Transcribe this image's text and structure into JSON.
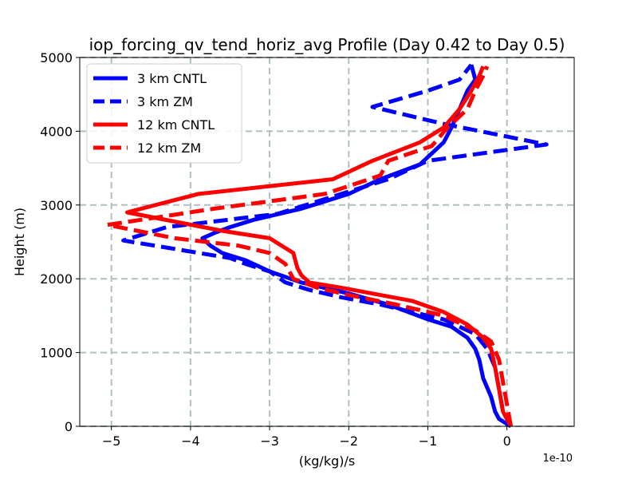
{
  "chart_data": {
    "type": "line",
    "title": "iop_forcing_qv_tend_horiz_avg Profile (Day 0.42 to Day 0.5)",
    "xlabel": "(kg/kg)/s",
    "ylabel": "Height (m)",
    "x_scale_label": "1e-10",
    "xlim": [
      -5.4,
      0.85
    ],
    "ylim": [
      0,
      5000
    ],
    "xticks": [
      -5,
      -4,
      -3,
      -2,
      -1,
      0
    ],
    "xtick_labels": [
      "−5",
      "−4",
      "−3",
      "−2",
      "−1",
      "0"
    ],
    "yticks": [
      0,
      1000,
      2000,
      3000,
      4000,
      5000
    ],
    "ytick_labels": [
      "0",
      "1000",
      "2000",
      "3000",
      "4000",
      "5000"
    ],
    "grid": true,
    "legend_position": "top-left",
    "series": [
      {
        "name": "3 km CNTL",
        "color": "#0000ff",
        "style": "solid",
        "points": [
          [
            0.05,
            0
          ],
          [
            -0.1,
            100
          ],
          [
            -0.15,
            200
          ],
          [
            -0.2,
            400
          ],
          [
            -0.3,
            650
          ],
          [
            -0.35,
            900
          ],
          [
            -0.4,
            1050
          ],
          [
            -0.5,
            1200
          ],
          [
            -0.7,
            1350
          ],
          [
            -1.0,
            1450
          ],
          [
            -1.5,
            1650
          ],
          [
            -2.0,
            1800
          ],
          [
            -2.6,
            1950
          ],
          [
            -3.0,
            2100
          ],
          [
            -3.3,
            2250
          ],
          [
            -3.6,
            2350
          ],
          [
            -3.75,
            2450
          ],
          [
            -3.85,
            2550
          ],
          [
            -3.7,
            2620
          ],
          [
            -3.5,
            2700
          ],
          [
            -3.2,
            2800
          ],
          [
            -2.6,
            2950
          ],
          [
            -2.3,
            3050
          ],
          [
            -2.0,
            3150
          ],
          [
            -1.6,
            3350
          ],
          [
            -1.1,
            3550
          ],
          [
            -0.8,
            3850
          ],
          [
            -0.7,
            4050
          ],
          [
            -0.6,
            4300
          ],
          [
            -0.5,
            4550
          ],
          [
            -0.4,
            4700
          ],
          [
            -0.45,
            4900
          ]
        ]
      },
      {
        "name": "3 km ZM",
        "color": "#0000ff",
        "style": "dashed",
        "points": [
          [
            0.05,
            0
          ],
          [
            -0.05,
            200
          ],
          [
            -0.1,
            500
          ],
          [
            -0.15,
            800
          ],
          [
            -0.25,
            1050
          ],
          [
            -0.4,
            1250
          ],
          [
            -0.8,
            1450
          ],
          [
            -1.2,
            1550
          ],
          [
            -1.6,
            1650
          ],
          [
            -2.1,
            1750
          ],
          [
            -2.5,
            1850
          ],
          [
            -2.8,
            1950
          ],
          [
            -3.0,
            2100
          ],
          [
            -3.3,
            2200
          ],
          [
            -3.5,
            2280
          ],
          [
            -4.85,
            2520
          ],
          [
            -4.3,
            2700
          ],
          [
            -2.9,
            2880
          ],
          [
            -1.5,
            3350
          ],
          [
            -1.0,
            3600
          ],
          [
            0.5,
            3820
          ],
          [
            -0.8,
            4100
          ],
          [
            -1.7,
            4330
          ],
          [
            -1.0,
            4550
          ],
          [
            -0.6,
            4700
          ],
          [
            -0.45,
            4900
          ]
        ]
      },
      {
        "name": "12 km CNTL",
        "color": "#ff0000",
        "style": "solid",
        "points": [
          [
            0.05,
            0
          ],
          [
            -0.05,
            200
          ],
          [
            -0.1,
            500
          ],
          [
            -0.15,
            800
          ],
          [
            -0.2,
            1050
          ],
          [
            -0.3,
            1200
          ],
          [
            -0.5,
            1380
          ],
          [
            -0.8,
            1550
          ],
          [
            -1.2,
            1700
          ],
          [
            -2.1,
            1880
          ],
          [
            -2.5,
            1950
          ],
          [
            -2.6,
            2050
          ],
          [
            -2.65,
            2150
          ],
          [
            -2.7,
            2350
          ],
          [
            -3.0,
            2550
          ],
          [
            -3.6,
            2650
          ],
          [
            -4.8,
            2900
          ],
          [
            -3.9,
            3150
          ],
          [
            -2.2,
            3350
          ],
          [
            -1.7,
            3600
          ],
          [
            -1.1,
            3850
          ],
          [
            -0.8,
            4050
          ],
          [
            -0.6,
            4300
          ],
          [
            -0.45,
            4550
          ],
          [
            -0.35,
            4750
          ],
          [
            -0.3,
            4880
          ]
        ]
      },
      {
        "name": "12 km ZM",
        "color": "#ff0000",
        "style": "dashed",
        "points": [
          [
            0.05,
            0
          ],
          [
            0.0,
            300
          ],
          [
            -0.05,
            600
          ],
          [
            -0.1,
            900
          ],
          [
            -0.2,
            1150
          ],
          [
            -0.4,
            1300
          ],
          [
            -0.8,
            1500
          ],
          [
            -1.4,
            1650
          ],
          [
            -2.0,
            1780
          ],
          [
            -2.4,
            1880
          ],
          [
            -2.7,
            2000
          ],
          [
            -2.8,
            2200
          ],
          [
            -3.0,
            2350
          ],
          [
            -3.4,
            2450
          ],
          [
            -4.2,
            2550
          ],
          [
            -5.05,
            2730
          ],
          [
            -3.7,
            2950
          ],
          [
            -2.3,
            3150
          ],
          [
            -1.6,
            3400
          ],
          [
            -1.5,
            3600
          ],
          [
            -0.95,
            3800
          ],
          [
            -0.75,
            4050
          ],
          [
            -0.5,
            4300
          ],
          [
            -0.4,
            4550
          ],
          [
            -0.3,
            4750
          ],
          [
            -0.25,
            4880
          ]
        ]
      }
    ]
  }
}
